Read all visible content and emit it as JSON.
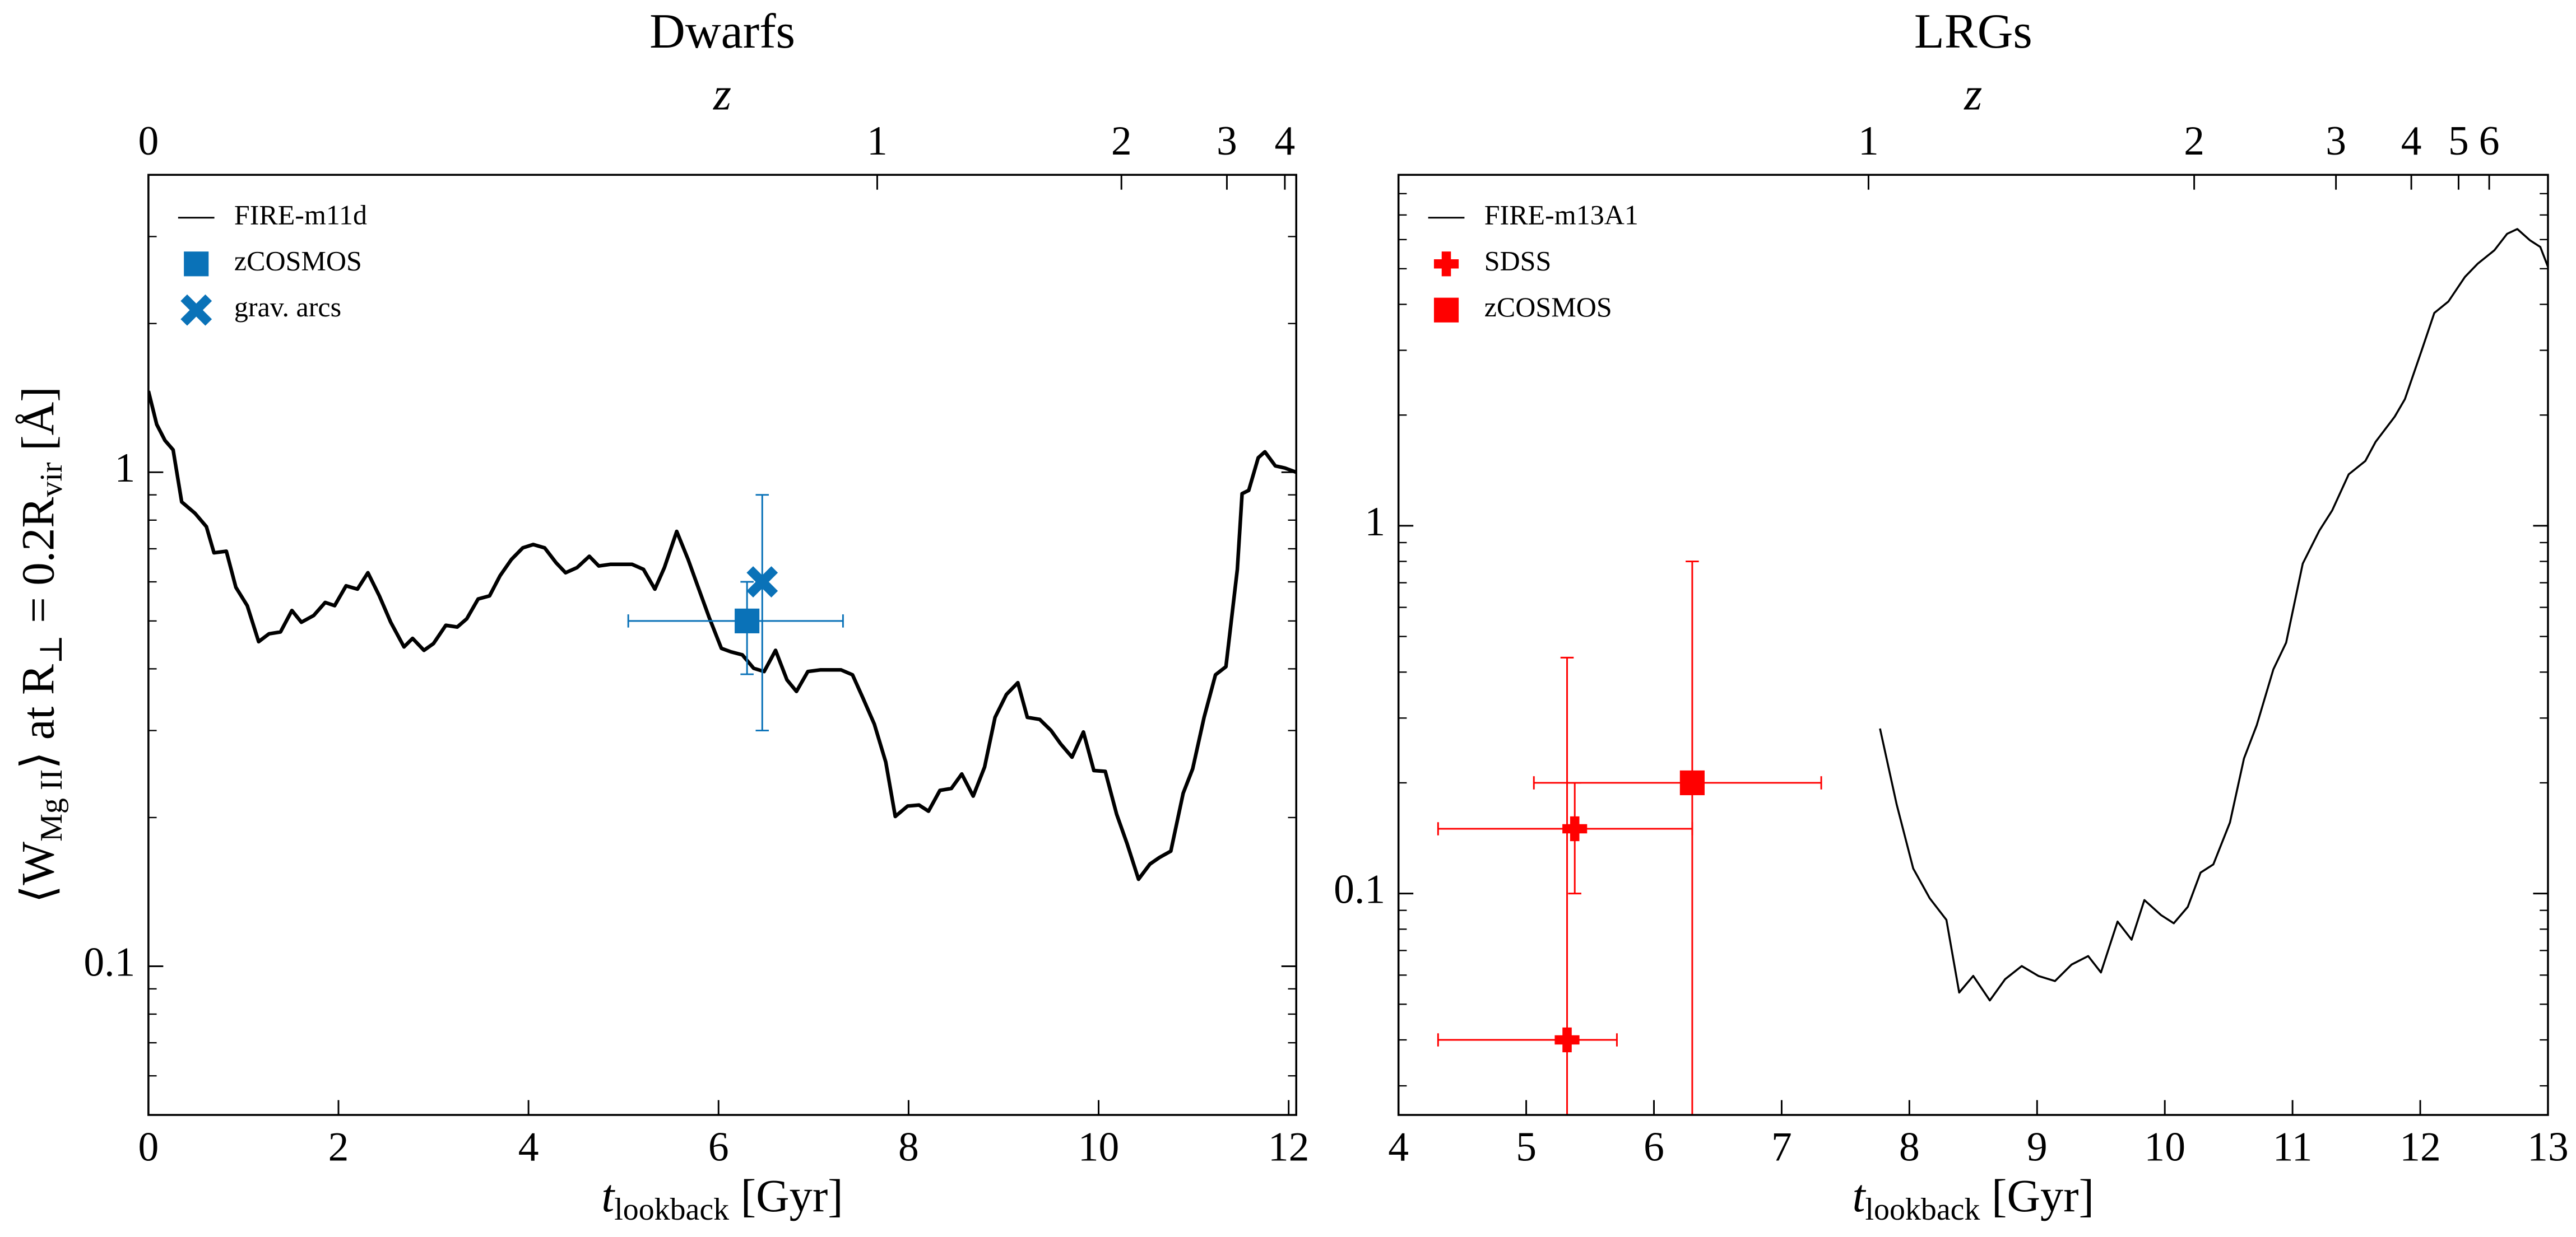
{
  "chart_data": [
    {
      "type": "line",
      "title": "Dwarfs",
      "x2label": "z",
      "xlabel": [
        "t",
        "lookback",
        " [Gyr]"
      ],
      "ylabel": [
        "⟨W",
        "Mg II",
        "⟩ at R",
        "⊥",
        " = 0.2R",
        "vir",
        " [Å]"
      ],
      "xlim": [
        0,
        12.08
      ],
      "xticks": [
        0,
        2,
        4,
        6,
        8,
        10,
        12
      ],
      "ylim": [
        0.05,
        4
      ],
      "yticks": [
        0.1,
        1
      ],
      "log_y": true,
      "legend": "upper left",
      "x2ticks": [
        {
          "value": 0,
          "label": "0"
        },
        {
          "value": 7.67,
          "label": "1"
        },
        {
          "value": 10.24,
          "label": "2"
        },
        {
          "value": 11.35,
          "label": "3"
        },
        {
          "value": 11.96,
          "label": "4"
        }
      ],
      "series": [
        {
          "name": "FIRE-m11d",
          "type": "line",
          "color": "#000000",
          "x": [
            0,
            0.087,
            0.174,
            0.26,
            0.35,
            0.49,
            0.61,
            0.69,
            0.82,
            0.92,
            1.04,
            1.16,
            1.27,
            1.39,
            1.51,
            1.61,
            1.74,
            1.86,
            1.96,
            2.08,
            2.2,
            2.31,
            2.43,
            2.55,
            2.69,
            2.78,
            2.9,
            3.0,
            3.13,
            3.25,
            3.35,
            3.47,
            3.59,
            3.7,
            3.82,
            3.94,
            4.05,
            4.17,
            4.29,
            4.39,
            4.51,
            4.64,
            4.74,
            4.86,
            5.09,
            5.21,
            5.33,
            5.43,
            5.56,
            5.68,
            5.78,
            5.9,
            6.03,
            6.13,
            6.25,
            6.37,
            6.48,
            6.6,
            6.72,
            6.82,
            6.94,
            7.07,
            7.29,
            7.41,
            7.52,
            7.64,
            7.76,
            7.86,
            7.99,
            8.11,
            8.21,
            8.33,
            8.45,
            8.56,
            8.68,
            8.8,
            8.91,
            9.03,
            9.15,
            9.25,
            9.38,
            9.5,
            9.6,
            9.72,
            9.84,
            9.95,
            10.07,
            10.19,
            10.3,
            10.42,
            10.54,
            10.64,
            10.76,
            10.89,
            10.99,
            11.11,
            11.23,
            11.34,
            11.46,
            11.51,
            11.58,
            11.68,
            11.75,
            11.86,
            11.96,
            12.08
          ],
          "values": [
            1.46,
            1.25,
            1.16,
            1.11,
            0.871,
            0.826,
            0.776,
            0.687,
            0.692,
            0.585,
            0.537,
            0.454,
            0.471,
            0.475,
            0.525,
            0.497,
            0.513,
            0.545,
            0.537,
            0.589,
            0.58,
            0.626,
            0.562,
            0.497,
            0.443,
            0.461,
            0.436,
            0.45,
            0.49,
            0.486,
            0.505,
            0.554,
            0.562,
            0.617,
            0.666,
            0.703,
            0.714,
            0.703,
            0.656,
            0.626,
            0.641,
            0.676,
            0.646,
            0.651,
            0.651,
            0.636,
            0.58,
            0.641,
            0.759,
            0.666,
            0.589,
            0.509,
            0.44,
            0.433,
            0.427,
            0.401,
            0.395,
            0.436,
            0.38,
            0.36,
            0.395,
            0.398,
            0.398,
            0.389,
            0.349,
            0.309,
            0.259,
            0.201,
            0.211,
            0.212,
            0.206,
            0.227,
            0.229,
            0.245,
            0.221,
            0.253,
            0.319,
            0.355,
            0.375,
            0.319,
            0.316,
            0.3,
            0.282,
            0.265,
            0.298,
            0.249,
            0.248,
            0.203,
            0.177,
            0.15,
            0.161,
            0.166,
            0.171,
            0.224,
            0.251,
            0.319,
            0.389,
            0.404,
            0.636,
            0.905,
            0.919,
            1.07,
            1.1,
            1.03,
            1.02,
            1.0
          ]
        },
        {
          "name": "zCOSMOS",
          "type": "scatter",
          "marker": "square",
          "color": "#0a72b8",
          "x": [
            6.3
          ],
          "values": [
            0.5
          ],
          "xerr": [
            [
              1.25,
              1.01
            ]
          ],
          "yerr": [
            [
              0.11,
              0.1
            ]
          ]
        },
        {
          "name": "grav. arcs",
          "type": "scatter",
          "marker": "x",
          "color": "#0a72b8",
          "x": [
            6.46
          ],
          "values": [
            0.6
          ],
          "yerr": [
            [
              0.3,
              0.3
            ]
          ]
        }
      ]
    },
    {
      "type": "line",
      "title": "LRGs",
      "x2label": "z",
      "xlabel": [
        "t",
        "lookback",
        " [Gyr]"
      ],
      "xlim": [
        4,
        13
      ],
      "xticks": [
        4,
        5,
        6,
        7,
        8,
        9,
        10,
        11,
        12,
        13
      ],
      "ylim": [
        0.025,
        9
      ],
      "yticks": [
        0.1,
        1
      ],
      "log_y": true,
      "legend": "upper left",
      "x2ticks": [
        {
          "value": 7.68,
          "label": "1"
        },
        {
          "value": 10.23,
          "label": "2"
        },
        {
          "value": 11.34,
          "label": "3"
        },
        {
          "value": 11.93,
          "label": "4"
        },
        {
          "value": 12.3,
          "label": "5"
        },
        {
          "value": 12.54,
          "label": "6"
        }
      ],
      "series": [
        {
          "name": "FIRE-m13A1",
          "type": "line",
          "color": "#000000",
          "x": [
            7.77,
            7.9,
            8.03,
            8.16,
            8.29,
            8.39,
            8.5,
            8.63,
            8.75,
            8.88,
            9.01,
            9.14,
            9.27,
            9.4,
            9.5,
            9.63,
            9.74,
            9.84,
            9.97,
            10.07,
            10.18,
            10.28,
            10.38,
            10.51,
            10.62,
            10.72,
            10.85,
            10.95,
            11.08,
            11.21,
            11.31,
            11.44,
            11.57,
            11.65,
            11.8,
            11.88,
            12.01,
            12.11,
            12.22,
            12.35,
            12.45,
            12.58,
            12.68,
            12.76,
            12.86,
            12.94,
            13.0
          ],
          "values": [
            0.281,
            0.175,
            0.117,
            0.097,
            0.0848,
            0.0538,
            0.0597,
            0.0512,
            0.0585,
            0.0635,
            0.0597,
            0.0578,
            0.0641,
            0.0676,
            0.061,
            0.0839,
            0.0749,
            0.096,
            0.0874,
            0.083,
            0.092,
            0.114,
            0.12,
            0.156,
            0.233,
            0.287,
            0.407,
            0.481,
            0.789,
            0.97,
            1.1,
            1.38,
            1.5,
            1.69,
            1.98,
            2.21,
            2.99,
            3.79,
            4.07,
            4.75,
            5.16,
            5.61,
            6.22,
            6.41,
            5.97,
            5.73,
            5.06
          ]
        },
        {
          "name": "SDSS",
          "type": "scatter",
          "marker": "plus",
          "color": "#ff0000",
          "x": [
            5.38,
            5.32
          ],
          "values": [
            0.15,
            0.04
          ],
          "xerr": [
            [
              1.07,
              0.92
            ],
            [
              1.01,
              0.39
            ]
          ],
          "yerr": [
            [
              0.05,
              0.05
            ],
            [
              0.04,
              0.398
            ]
          ]
        },
        {
          "name": "zCOSMOS",
          "type": "scatter",
          "marker": "square",
          "color": "#ff0000",
          "x": [
            6.3
          ],
          "values": [
            0.2
          ],
          "xerr": [
            [
              1.24,
              1.01
            ]
          ],
          "yerr": [
            [
              0.2,
              0.6
            ]
          ]
        }
      ]
    }
  ]
}
